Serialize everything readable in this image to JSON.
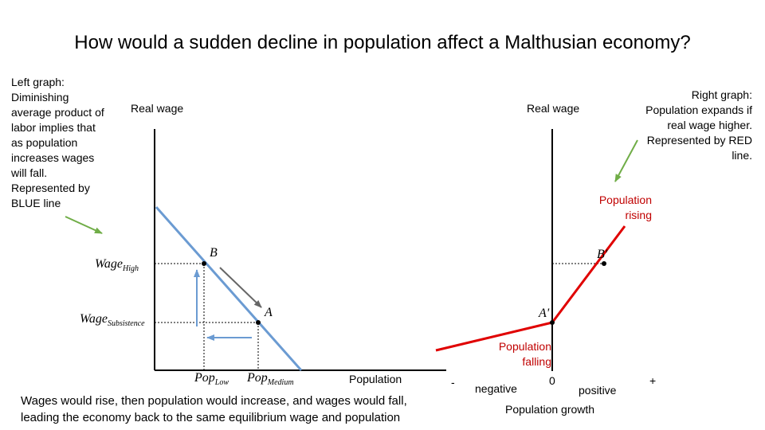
{
  "title": "How would a sudden decline in population affect a Malthusian economy?",
  "notes": {
    "left": "Left graph: Diminishing average product of labor implies that as population increases wages will fall. Represented by BLUE line",
    "right": "Right graph: Population expands if real wage higher. Represented by RED line.",
    "bottom_line1": "Wages would rise, then population would increase, and wages would fall,",
    "bottom_line2": "leading the economy back to the same equilibrium wage and population"
  },
  "left_graph": {
    "y_axis_label": "Real wage",
    "x_axis_label": "Population",
    "wage_high": {
      "main": "Wage",
      "sub": "High"
    },
    "wage_subsistence": {
      "main": "Wage",
      "sub": "Subsistence"
    },
    "pop_low": {
      "main": "Pop",
      "sub": "Low"
    },
    "pop_medium": {
      "main": "Pop",
      "sub": "Medium"
    },
    "point_b": "B",
    "point_a": "A"
  },
  "right_graph": {
    "y_axis_label": "Real wage",
    "x_axis_label": "Population growth",
    "tick_minus": "-",
    "tick_negative": "negative",
    "tick_zero": "0",
    "tick_positive": "positive",
    "tick_plus": "+",
    "point_b_prime": "B'",
    "point_a_prime": "A'",
    "population_rising": "Population rising",
    "population_falling": "Population falling"
  },
  "colors": {
    "blue_line": "#6b9bd2",
    "red_line": "#e00000",
    "green_arrow": "#70ad47",
    "red_text": "#c00000"
  }
}
